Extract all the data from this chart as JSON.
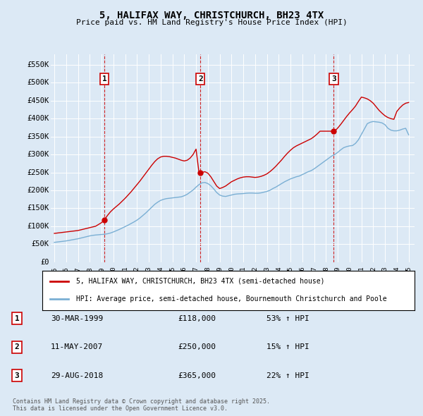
{
  "title": "5, HALIFAX WAY, CHRISTCHURCH, BH23 4TX",
  "subtitle": "Price paid vs. HM Land Registry's House Price Index (HPI)",
  "background_color": "#dce9f5",
  "plot_bg_color": "#dce9f5",
  "grid_color": "#ffffff",
  "red_color": "#cc0000",
  "blue_color": "#7aafd4",
  "ylim": [
    0,
    580000
  ],
  "xlim_start": 1994.7,
  "xlim_end": 2025.5,
  "yticks": [
    0,
    50000,
    100000,
    150000,
    200000,
    250000,
    300000,
    350000,
    400000,
    450000,
    500000,
    550000
  ],
  "ytick_labels": [
    "£0",
    "£50K",
    "£100K",
    "£150K",
    "£200K",
    "£250K",
    "£300K",
    "£350K",
    "£400K",
    "£450K",
    "£500K",
    "£550K"
  ],
  "xtick_years": [
    1995,
    1996,
    1997,
    1998,
    1999,
    2000,
    2001,
    2002,
    2003,
    2004,
    2005,
    2006,
    2007,
    2008,
    2009,
    2010,
    2011,
    2012,
    2013,
    2014,
    2015,
    2016,
    2017,
    2018,
    2019,
    2020,
    2021,
    2022,
    2023,
    2024,
    2025
  ],
  "sales": [
    {
      "num": 1,
      "year": 1999.25,
      "price": 118000,
      "label": "30-MAR-1999",
      "pct": "53%"
    },
    {
      "num": 2,
      "year": 2007.37,
      "price": 250000,
      "label": "11-MAY-2007",
      "pct": "15%"
    },
    {
      "num": 3,
      "year": 2018.66,
      "price": 365000,
      "label": "29-AUG-2018",
      "pct": "22%"
    }
  ],
  "legend_red_label": "5, HALIFAX WAY, CHRISTCHURCH, BH23 4TX (semi-detached house)",
  "legend_blue_label": "HPI: Average price, semi-detached house, Bournemouth Christchurch and Poole",
  "footnote": "Contains HM Land Registry data © Crown copyright and database right 2025.\nThis data is licensed under the Open Government Licence v3.0.",
  "hpi_x": [
    1995.0,
    1995.25,
    1995.5,
    1995.75,
    1996.0,
    1996.25,
    1996.5,
    1996.75,
    1997.0,
    1997.25,
    1997.5,
    1997.75,
    1998.0,
    1998.25,
    1998.5,
    1998.75,
    1999.0,
    1999.25,
    1999.5,
    1999.75,
    2000.0,
    2000.25,
    2000.5,
    2000.75,
    2001.0,
    2001.25,
    2001.5,
    2001.75,
    2002.0,
    2002.25,
    2002.5,
    2002.75,
    2003.0,
    2003.25,
    2003.5,
    2003.75,
    2004.0,
    2004.25,
    2004.5,
    2004.75,
    2005.0,
    2005.25,
    2005.5,
    2005.75,
    2006.0,
    2006.25,
    2006.5,
    2006.75,
    2007.0,
    2007.25,
    2007.5,
    2007.75,
    2008.0,
    2008.25,
    2008.5,
    2008.75,
    2009.0,
    2009.25,
    2009.5,
    2009.75,
    2010.0,
    2010.25,
    2010.5,
    2010.75,
    2011.0,
    2011.25,
    2011.5,
    2011.75,
    2012.0,
    2012.25,
    2012.5,
    2012.75,
    2013.0,
    2013.25,
    2013.5,
    2013.75,
    2014.0,
    2014.25,
    2014.5,
    2014.75,
    2015.0,
    2015.25,
    2015.5,
    2015.75,
    2016.0,
    2016.25,
    2016.5,
    2016.75,
    2017.0,
    2017.25,
    2017.5,
    2017.75,
    2018.0,
    2018.25,
    2018.5,
    2018.75,
    2019.0,
    2019.25,
    2019.5,
    2019.75,
    2020.0,
    2020.25,
    2020.5,
    2020.75,
    2021.0,
    2021.25,
    2021.5,
    2021.75,
    2022.0,
    2022.25,
    2022.5,
    2022.75,
    2023.0,
    2023.25,
    2023.5,
    2023.75,
    2024.0,
    2024.25,
    2024.5,
    2024.75,
    2025.0
  ],
  "hpi_y": [
    55000,
    56000,
    57000,
    58000,
    59000,
    60500,
    62000,
    63500,
    65000,
    67000,
    69000,
    71000,
    73000,
    74500,
    75500,
    76200,
    77000,
    77500,
    79000,
    81000,
    84000,
    87500,
    91000,
    95000,
    99000,
    103000,
    107500,
    112000,
    117000,
    123000,
    130000,
    137000,
    145000,
    153000,
    161000,
    167000,
    172000,
    175000,
    177000,
    178000,
    179000,
    180000,
    181000,
    182000,
    185000,
    189000,
    195000,
    201000,
    209000,
    216000,
    221000,
    222000,
    219000,
    213000,
    204000,
    194000,
    187000,
    184000,
    183000,
    185000,
    187000,
    189000,
    190000,
    190500,
    191000,
    192000,
    192500,
    192500,
    192000,
    192000,
    193000,
    195000,
    197000,
    200000,
    205000,
    209000,
    214000,
    219000,
    224000,
    228000,
    232000,
    235000,
    238000,
    240000,
    244000,
    248000,
    252000,
    255000,
    260000,
    266000,
    272000,
    278000,
    284000,
    290000,
    296000,
    300000,
    306000,
    313000,
    319000,
    322000,
    324000,
    325000,
    331000,
    341000,
    356000,
    371000,
    386000,
    390000,
    392000,
    391000,
    390000,
    388000,
    383000,
    373000,
    368000,
    366000,
    366000,
    368000,
    371000,
    373000,
    355000
  ],
  "red_x": [
    1995.0,
    1995.25,
    1995.5,
    1995.75,
    1996.0,
    1996.25,
    1996.5,
    1996.75,
    1997.0,
    1997.25,
    1997.5,
    1997.75,
    1998.0,
    1998.25,
    1998.5,
    1998.75,
    1999.0,
    1999.25,
    1999.5,
    1999.75,
    2000.0,
    2000.25,
    2000.5,
    2000.75,
    2001.0,
    2001.25,
    2001.5,
    2001.75,
    2002.0,
    2002.25,
    2002.5,
    2002.75,
    2003.0,
    2003.25,
    2003.5,
    2003.75,
    2004.0,
    2004.25,
    2004.5,
    2004.75,
    2005.0,
    2005.25,
    2005.5,
    2005.75,
    2006.0,
    2006.25,
    2006.5,
    2006.75,
    2007.0,
    2007.25,
    2007.5,
    2007.75,
    2008.0,
    2008.25,
    2008.5,
    2008.75,
    2009.0,
    2009.25,
    2009.5,
    2009.75,
    2010.0,
    2010.25,
    2010.5,
    2010.75,
    2011.0,
    2011.25,
    2011.5,
    2011.75,
    2012.0,
    2012.25,
    2012.5,
    2012.75,
    2013.0,
    2013.25,
    2013.5,
    2013.75,
    2014.0,
    2014.25,
    2014.5,
    2014.75,
    2015.0,
    2015.25,
    2015.5,
    2015.75,
    2016.0,
    2016.25,
    2016.5,
    2016.75,
    2017.0,
    2017.25,
    2017.5,
    2017.75,
    2018.0,
    2018.25,
    2018.5,
    2018.75,
    2019.0,
    2019.25,
    2019.5,
    2019.75,
    2020.0,
    2020.25,
    2020.5,
    2020.75,
    2021.0,
    2021.25,
    2021.5,
    2021.75,
    2022.0,
    2022.25,
    2022.5,
    2022.75,
    2023.0,
    2023.25,
    2023.5,
    2023.75,
    2024.0,
    2024.25,
    2024.5,
    2024.75,
    2025.0
  ],
  "red_y": [
    80000,
    81000,
    82000,
    83000,
    84000,
    85000,
    86000,
    87000,
    88000,
    90000,
    92000,
    94000,
    96000,
    98000,
    100000,
    105000,
    110000,
    118000,
    130000,
    140000,
    148000,
    155000,
    162000,
    170000,
    178000,
    187000,
    196000,
    206000,
    216000,
    226000,
    237000,
    248000,
    259000,
    270000,
    280000,
    288000,
    293000,
    295000,
    295000,
    294000,
    292000,
    290000,
    287000,
    284000,
    282000,
    284000,
    290000,
    300000,
    315000,
    250000,
    250000,
    252000,
    248000,
    238000,
    225000,
    212000,
    205000,
    208000,
    212000,
    218000,
    224000,
    228000,
    232000,
    235000,
    237000,
    238000,
    238000,
    237000,
    236000,
    237000,
    239000,
    242000,
    246000,
    252000,
    259000,
    267000,
    276000,
    285000,
    295000,
    304000,
    312000,
    319000,
    324000,
    328000,
    332000,
    336000,
    340000,
    344000,
    350000,
    357000,
    365000,
    365000,
    365000,
    365000,
    365000,
    365000,
    374000,
    384000,
    395000,
    406000,
    416000,
    425000,
    435000,
    448000,
    460000,
    458000,
    455000,
    450000,
    443000,
    433000,
    423000,
    415000,
    408000,
    403000,
    400000,
    398000,
    420000,
    430000,
    438000,
    443000,
    445000
  ]
}
